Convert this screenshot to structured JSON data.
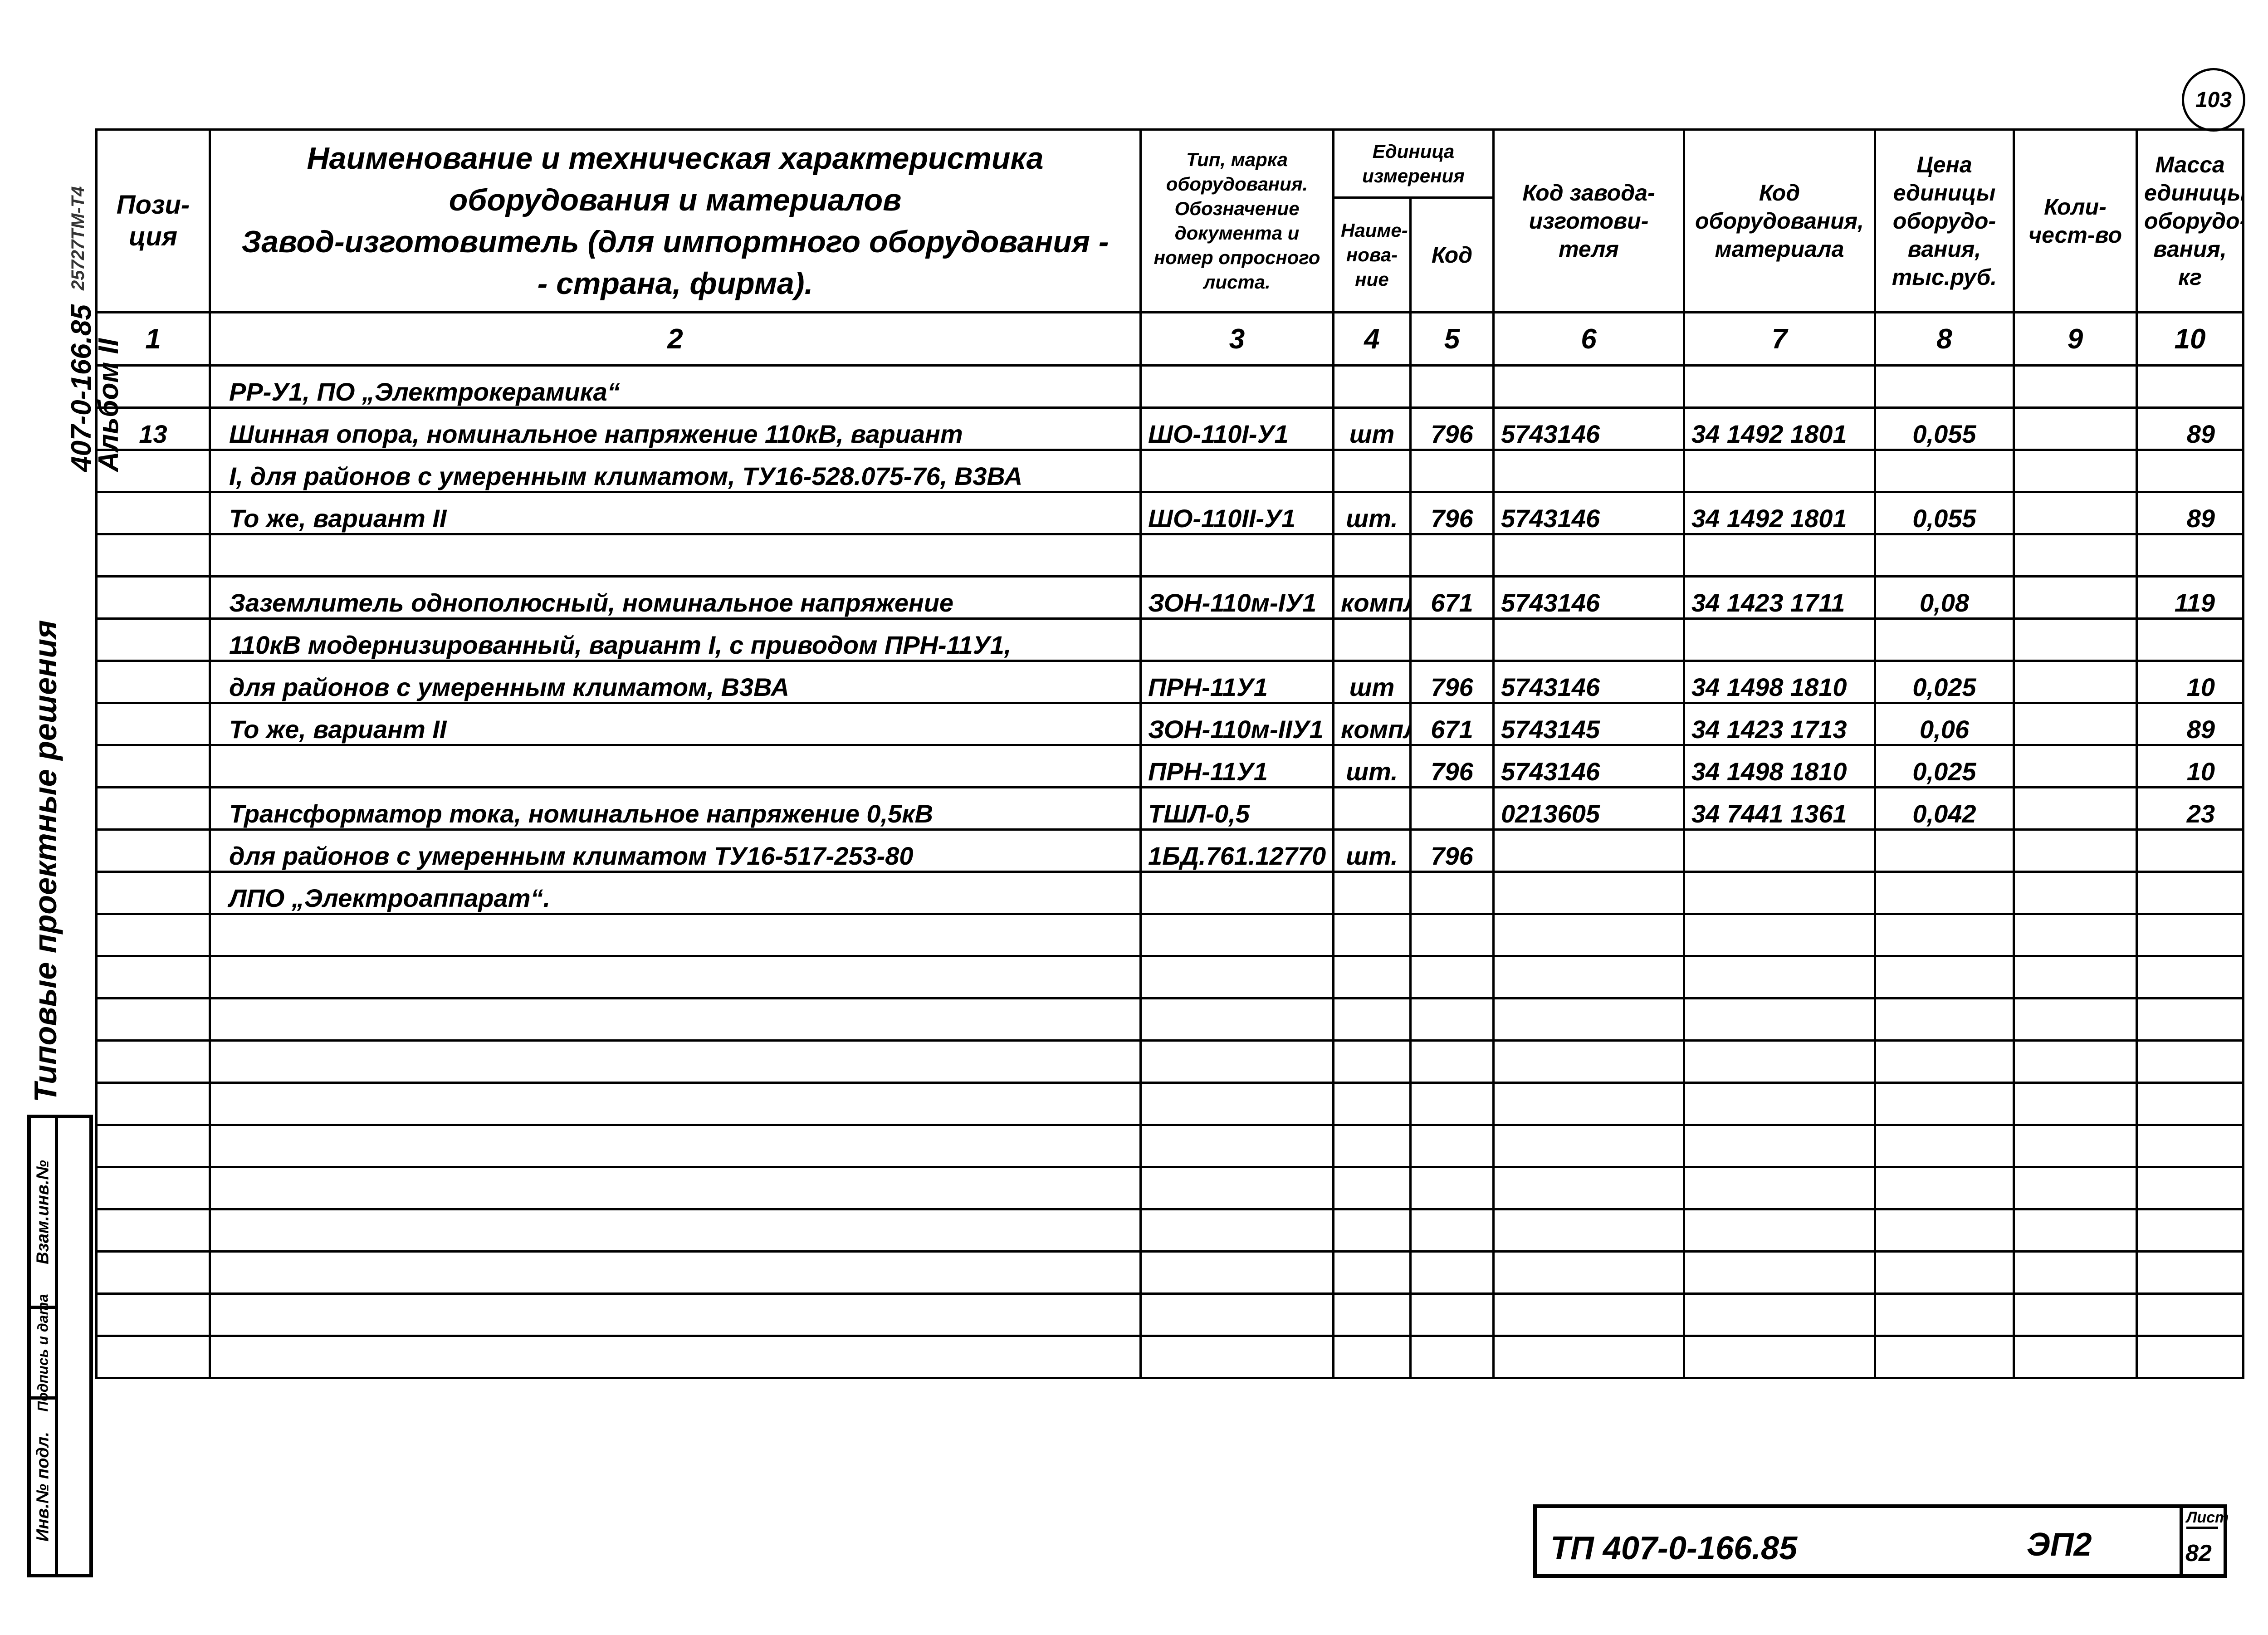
{
  "page_number": "103",
  "margin": {
    "series": "Типовые проектные решения",
    "code": "407-0-166.85",
    "album": "Альбом II",
    "small_code": "25727ТМ-Т4"
  },
  "side_stamp": {
    "replace_inv": "Взам.инв.№",
    "signature_date": "Подпись и дата",
    "inv_orig": "Инв.№ подл."
  },
  "header": {
    "col1": "Пози-ция",
    "col2_line1": "Наименование и техническая характеристика",
    "col2_line2": "оборудования и материалов",
    "col2_line3": "Завод-изготовитель (для импортного оборудования -",
    "col2_line4": "- страна, фирма).",
    "col3": "Тип, марка оборудования. Обозначение документа и номер опросного листа.",
    "unit_group": "Единица измерения",
    "col4": "Наиме-нова-ние",
    "col5": "Код",
    "col6": "Код завода-изготови-теля",
    "col7": "Код оборудования, материала",
    "col8": "Цена единицы оборудо-вания, тыс.руб.",
    "col9": "Коли-чест-во",
    "col10": "Масса единицы оборудо-вания, кг"
  },
  "column_numbers": [
    "1",
    "2",
    "3",
    "4",
    "5",
    "6",
    "7",
    "8",
    "9",
    "10"
  ],
  "rows": [
    [
      "",
      "РР-У1, ПО „Электрокерамика“",
      "",
      "",
      "",
      "",
      "",
      "",
      "",
      ""
    ],
    [
      "13",
      "Шинная опора, номинальное напряжение 110кВ, вариант",
      "ШО-110I-У1",
      "шт",
      "796",
      "5743146",
      "34 1492 1801",
      "0,055",
      "",
      "89"
    ],
    [
      "",
      "I, для районов с умеренным климатом, ТУ16-528.075-76, В3ВА",
      "",
      "",
      "",
      "",
      "",
      "",
      "",
      ""
    ],
    [
      "",
      "То же, вариант II",
      "ШО-110II-У1",
      "шт.",
      "796",
      "5743146",
      "34 1492 1801",
      "0,055",
      "",
      "89"
    ],
    [
      "",
      "",
      "",
      "",
      "",
      "",
      "",
      "",
      "",
      ""
    ],
    [
      "",
      "Заземлитель однополюсный, номинальное напряжение",
      "ЗОН-110м-IУ1",
      "компл",
      "671",
      "5743146",
      "34 1423 1711",
      "0,08",
      "",
      "119"
    ],
    [
      "",
      "110кВ модернизированный, вариант I, с приводом ПРН-11У1,",
      "",
      "",
      "",
      "",
      "",
      "",
      "",
      ""
    ],
    [
      "",
      "для районов с умеренным климатом, В3ВА",
      "ПРН-11У1",
      "шт",
      "796",
      "5743146",
      "34 1498 1810",
      "0,025",
      "",
      "10"
    ],
    [
      "",
      "То же, вариант II",
      "ЗОН-110м-IIУ1",
      "компл",
      "671",
      "5743145",
      "34 1423 1713",
      "0,06",
      "",
      "89"
    ],
    [
      "",
      "",
      "ПРН-11У1",
      "шт.",
      "796",
      "5743146",
      "34 1498 1810",
      "0,025",
      "",
      "10"
    ],
    [
      "",
      "Трансформатор тока, номинальное напряжение 0,5кВ",
      "ТШЛ-0,5",
      "",
      "",
      "0213605",
      "34 7441 1361",
      "0,042",
      "",
      "23"
    ],
    [
      "",
      "для районов с умеренным климатом ТУ16-517-253-80",
      "1БД.761.12770",
      "шт.",
      "796",
      "",
      "",
      "",
      "",
      ""
    ],
    [
      "",
      "ЛПО „Электроаппарат“.",
      "",
      "",
      "",
      "",
      "",
      "",
      "",
      ""
    ]
  ],
  "title_block": {
    "doc_code": "ТП 407-0-166.85",
    "sheet_code": "ЭП2",
    "sheet_label": "Лист",
    "sheet_number": "82"
  }
}
